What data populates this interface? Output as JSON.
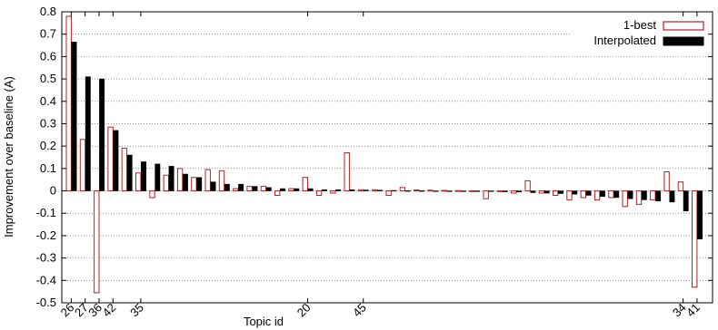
{
  "chart_data": {
    "type": "bar",
    "title": "",
    "xlabel": "Topic id",
    "ylabel": "Improvement over baseline (A)",
    "ylim": [
      -0.5,
      0.8
    ],
    "yticks": [
      "0.8",
      "0.7",
      "0.6",
      "0.5",
      "0.4",
      "0.3",
      "0.2",
      "0.1",
      "0",
      "-0.1",
      "-0.2",
      "-0.3",
      "-0.4",
      "-0.5"
    ],
    "ytick_values": [
      0.8,
      0.7,
      0.6,
      0.5,
      0.4,
      0.3,
      0.2,
      0.1,
      0,
      -0.1,
      -0.2,
      -0.3,
      -0.4,
      -0.5
    ],
    "grid": "horizontal dotted",
    "legend_position": "top-right",
    "series": [
      {
        "name": "1-best",
        "color": "#b22222",
        "style": "outline",
        "values": [
          0.78,
          0.23,
          -0.455,
          0.285,
          0.19,
          0.08,
          -0.03,
          0.07,
          0.1,
          0.06,
          0.095,
          0.09,
          0.01,
          0.02,
          0.02,
          -0.02,
          0.01,
          0.06,
          -0.02,
          -0.01,
          0.17,
          0.005,
          0.005,
          -0.02,
          0.015,
          0.004,
          0.003,
          0.002,
          0.001,
          0.0,
          -0.035,
          0.0,
          -0.01,
          0.045,
          -0.01,
          -0.02,
          -0.04,
          -0.03,
          -0.04,
          -0.03,
          -0.07,
          -0.06,
          -0.04,
          0.085,
          0.04,
          -0.43
        ]
      },
      {
        "name": "Interpolated",
        "color": "#000000",
        "style": "solid",
        "values": [
          0.665,
          0.51,
          0.5,
          0.27,
          0.16,
          0.13,
          0.12,
          0.11,
          0.075,
          0.06,
          0.04,
          0.03,
          0.03,
          0.02,
          0.015,
          0.01,
          0.01,
          0.01,
          0.005,
          0.005,
          0.005,
          0.004,
          0.003,
          0.002,
          0.001,
          0.001,
          0.0,
          0.0,
          -0.001,
          -0.002,
          -0.003,
          -0.004,
          -0.005,
          -0.008,
          -0.01,
          -0.012,
          -0.015,
          -0.02,
          -0.025,
          -0.03,
          -0.035,
          -0.04,
          -0.045,
          -0.05,
          -0.09,
          -0.215
        ]
      }
    ],
    "x_tick_labels": [
      {
        "index": 0,
        "label": "26"
      },
      {
        "index": 1,
        "label": "27"
      },
      {
        "index": 2,
        "label": "36"
      },
      {
        "index": 3,
        "label": "42"
      },
      {
        "index": 5,
        "label": "35"
      },
      {
        "index": 17,
        "label": "20"
      },
      {
        "index": 21,
        "label": "45"
      },
      {
        "index": 44,
        "label": "34"
      },
      {
        "index": 45,
        "label": "41"
      }
    ]
  }
}
